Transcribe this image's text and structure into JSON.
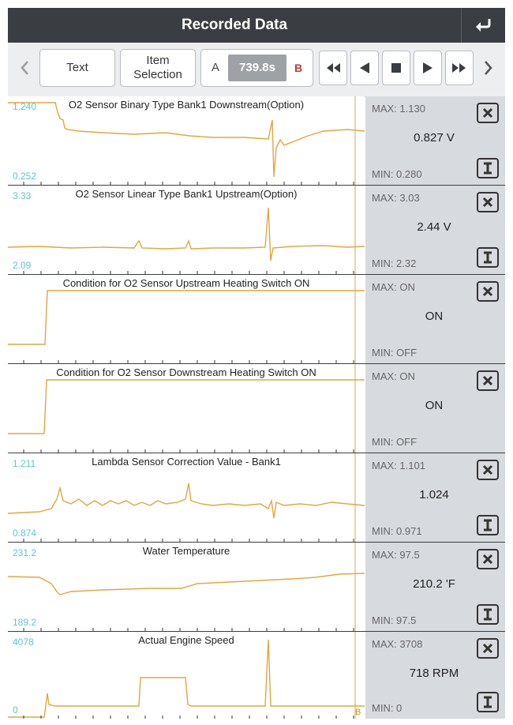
{
  "header": {
    "title": "Recorded Data",
    "back_icon": "return-arrow-icon"
  },
  "toolbar": {
    "text_label": "Text",
    "item_selection_label": "Item\nSelection",
    "cursor_a": "A",
    "time": "739.8s",
    "cursor_b": "B"
  },
  "colors": {
    "trace": "#e3a63d",
    "axis_label": "#5bc6d6",
    "panel": "#d7dadf",
    "header": "#3a3d42",
    "cursor_b": "#c9372c"
  },
  "rows": [
    {
      "title": "O2 Sensor Binary Type Bank1 Downstream(Option)",
      "ymax": "1.240",
      "ymin": "0.252",
      "max": "MAX: 1.130",
      "value": "0.827 V",
      "min": "MIN: 0.280"
    },
    {
      "title": "O2 Sensor Linear Type Bank1 Upstream(Option)",
      "ymax": "3.33",
      "ymin": "2.09",
      "max": "MAX: 3.03",
      "value": "2.44 V",
      "min": "MIN: 2.32"
    },
    {
      "title": "Condition for O2 Sensor Upstream Heating Switch ON",
      "ymax": "",
      "ymin": "",
      "max": "MAX: ON",
      "value": "ON",
      "min": "MIN: OFF"
    },
    {
      "title": "Condition for O2 Sensor Downstream Heating Switch ON",
      "ymax": "",
      "ymin": "",
      "max": "MAX: ON",
      "value": "ON",
      "min": "MIN: OFF"
    },
    {
      "title": "Lambda Sensor Correction Value - Bank1",
      "ymax": "1.211",
      "ymin": "0.874",
      "max": "MAX: 1.101",
      "value": "1.024",
      "min": "MIN: 0.971"
    },
    {
      "title": "Water Temperature",
      "ymax": "231.2",
      "ymin": "189.2",
      "max": "MAX: 97.5",
      "value": "210.2 'F",
      "min": "MIN: 97.5"
    },
    {
      "title": "Actual Engine Speed",
      "ymax": "4078",
      "ymin": "0",
      "max": "MAX: 3708",
      "value": "718 RPM",
      "min": "MIN: 0"
    }
  ],
  "cursor_b_label": "B"
}
